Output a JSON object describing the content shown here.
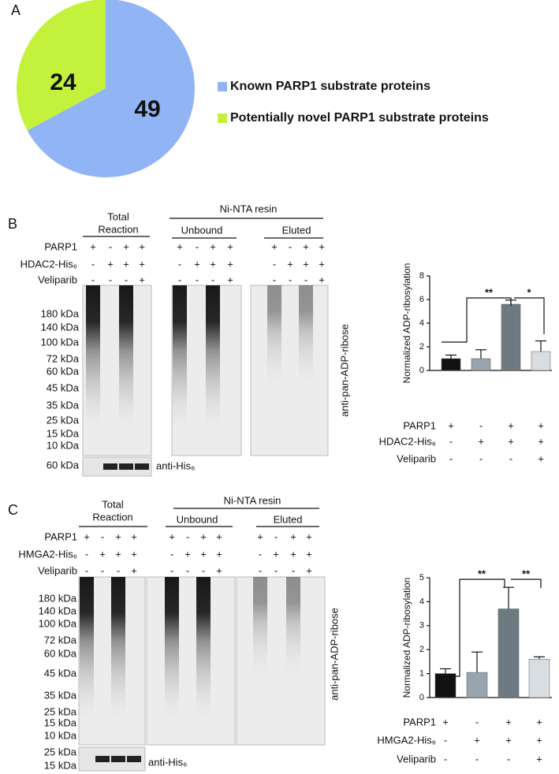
{
  "panel_labels": [
    "A",
    "B",
    "C"
  ],
  "chart_data": [
    {
      "type": "pie",
      "categories": [
        "Known PARP1 substrate proteins",
        "Potentially novel PARP1 substrate proteins"
      ],
      "values": [
        49,
        24
      ],
      "colors": [
        "#90b4f4",
        "#c4f23c"
      ],
      "legend": "right"
    },
    {
      "type": "bar",
      "y_label": "Normalized ADP-ribosylation",
      "values": [
        1,
        1,
        5.6,
        1.6
      ],
      "errors": [
        0.3,
        0.75,
        0.35,
        0.9
      ],
      "colors": [
        "#111111",
        "#9aa4ae",
        "#6e7a82",
        "#d8dde1"
      ],
      "ylim": [
        0,
        8
      ],
      "yticks": [
        0,
        2,
        4,
        6,
        8
      ],
      "conditions": [
        {
          "label": "PARP1",
          "signs": [
            "+",
            "-",
            "+",
            "+"
          ]
        },
        {
          "label": "HDAC2-His₆",
          "signs": [
            "-",
            "+",
            "+",
            "+"
          ]
        },
        {
          "label": "Veliparib",
          "signs": [
            "-",
            "-",
            "-",
            "+"
          ]
        }
      ],
      "annotations": [
        "**",
        "*"
      ]
    },
    {
      "type": "bar",
      "y_label": "Normalized ADP-ribosylation",
      "values": [
        1,
        1.05,
        3.7,
        1.6
      ],
      "errors": [
        0.2,
        0.85,
        0.9,
        0.1
      ],
      "colors": [
        "#111111",
        "#9aa4ae",
        "#6e7a82",
        "#d8dde1"
      ],
      "ylim": [
        0,
        5
      ],
      "yticks": [
        0,
        1,
        2,
        3,
        4,
        5
      ],
      "conditions": [
        {
          "label": "PARP1",
          "signs": [
            "+",
            "-",
            "+",
            "+"
          ]
        },
        {
          "label": "HMGA2-His₆",
          "signs": [
            "-",
            "+",
            "+",
            "+"
          ]
        },
        {
          "label": "Veliparib",
          "signs": [
            "-",
            "-",
            "-",
            "+"
          ]
        }
      ],
      "annotations": [
        "**",
        "**"
      ]
    }
  ],
  "blots": [
    {
      "total": [
        "Total",
        "Reaction"
      ],
      "resin": "Ni-NTA resin",
      "unbound": "Unbound",
      "eluted": "Eluted",
      "rows": [
        {
          "label": "PARP1",
          "groups": [
            [
              "+",
              "-",
              "+",
              "+"
            ],
            [
              "+",
              "-",
              "+",
              "+"
            ],
            [
              "+",
              "-",
              "+",
              "+"
            ]
          ]
        },
        {
          "label": "HDAC2-His₆",
          "groups": [
            [
              "-",
              "+",
              "+",
              "+"
            ],
            [
              "-",
              "+",
              "+",
              "+"
            ],
            [
              "-",
              "+",
              "+",
              "+"
            ]
          ]
        },
        {
          "label": "Veliparib",
          "groups": [
            [
              "-",
              "-",
              "-",
              "+"
            ],
            [
              "-",
              "-",
              "-",
              "+"
            ],
            [
              "-",
              "-",
              "-",
              "+"
            ]
          ]
        }
      ],
      "markers": [
        "180 kDa",
        "140 kDa",
        "100 kDa",
        "72 kDa",
        "60 kDa",
        "45 kDa",
        "35 kDa",
        "25 kDa",
        "15 kDa",
        "10 kDa"
      ],
      "lower_markers": [
        "60 kDa"
      ],
      "antibody": "anti-pan-ADP-ribose",
      "lower_antibody": "anti-His₆"
    },
    {
      "total": [
        "Total",
        "Reaction"
      ],
      "resin": "Ni-NTA resin",
      "unbound": "Unbound",
      "eluted": "Eluted",
      "rows": [
        {
          "label": "PARP1",
          "groups": [
            [
              "+",
              "-",
              "+",
              "+"
            ],
            [
              "+",
              "-",
              "+",
              "+"
            ],
            [
              "+",
              "-",
              "+",
              "+"
            ]
          ]
        },
        {
          "label": "HMGA2-His₆",
          "groups": [
            [
              "-",
              "+",
              "+",
              "+"
            ],
            [
              "-",
              "+",
              "+",
              "+"
            ],
            [
              "-",
              "+",
              "+",
              "+"
            ]
          ]
        },
        {
          "label": "Veliparib",
          "groups": [
            [
              "-",
              "-",
              "-",
              "+"
            ],
            [
              "-",
              "-",
              "-",
              "+"
            ],
            [
              "-",
              "-",
              "-",
              "+"
            ]
          ]
        }
      ],
      "markers": [
        "180 kDa",
        "140 kDa",
        "100 kDa",
        "72 kDa",
        "60 kDa",
        "45 kDa",
        "35 kDa",
        "25 kDa",
        "15 kDa",
        "10 kDa"
      ],
      "lower_markers": [
        "25 kDa",
        "15 kDa"
      ],
      "antibody": "anti-pan-ADP-ribose",
      "lower_antibody": "anti-His₆"
    }
  ]
}
